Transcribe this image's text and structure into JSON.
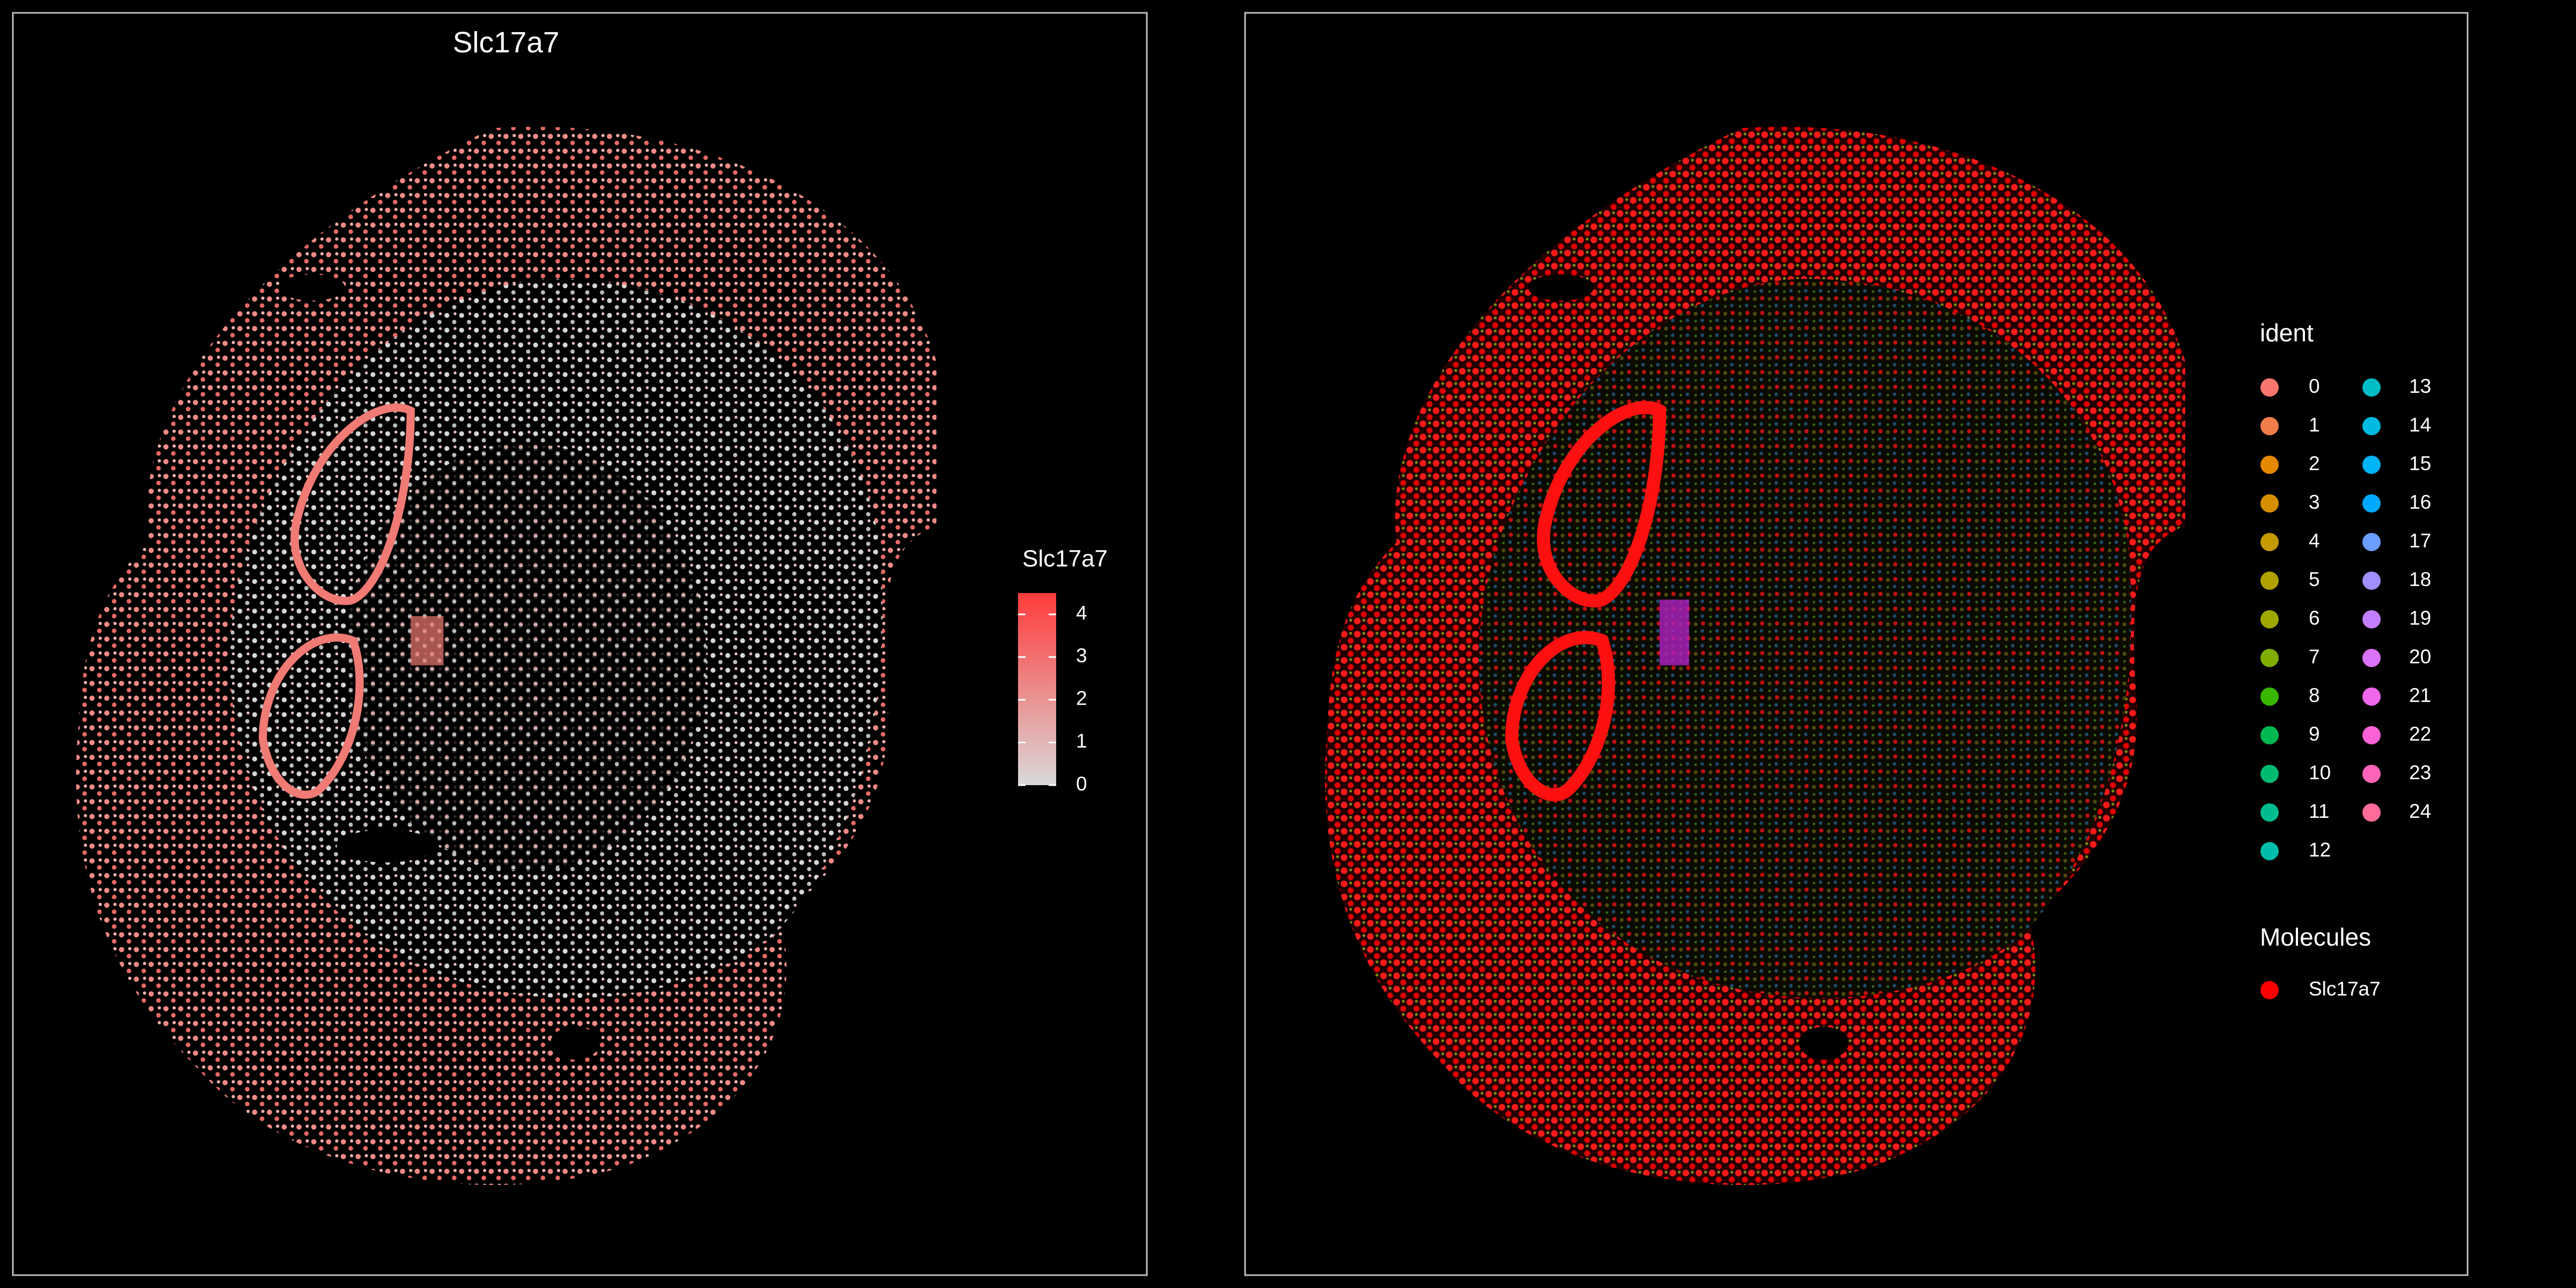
{
  "chart_data": [
    {
      "type": "spatial-feature",
      "title": "Slc17a7",
      "legend": {
        "title": "Slc17a7",
        "colors": [
          "#d9d9d9",
          "#ff3b3b"
        ],
        "lim": [
          0,
          4.5
        ],
        "ticks": [
          0,
          1,
          2,
          3,
          4
        ]
      }
    },
    {
      "type": "spatial-dim",
      "legend": {
        "title": "ident",
        "items": [
          {
            "label": "0",
            "color": "#F8766D"
          },
          {
            "label": "1",
            "color": "#F07E4C"
          },
          {
            "label": "2",
            "color": "#E58700"
          },
          {
            "label": "3",
            "color": "#D68F00"
          },
          {
            "label": "4",
            "color": "#C59900"
          },
          {
            "label": "5",
            "color": "#B2A000"
          },
          {
            "label": "6",
            "color": "#9CA700"
          },
          {
            "label": "7",
            "color": "#7FAD00"
          },
          {
            "label": "8",
            "color": "#39B600"
          },
          {
            "label": "9",
            "color": "#00B84D"
          },
          {
            "label": "10",
            "color": "#00BA70"
          },
          {
            "label": "11",
            "color": "#00BC8F"
          },
          {
            "label": "12",
            "color": "#00BDAB"
          },
          {
            "label": "13",
            "color": "#00BCC7"
          },
          {
            "label": "14",
            "color": "#00B9E0"
          },
          {
            "label": "15",
            "color": "#00B3F4"
          },
          {
            "label": "16",
            "color": "#00A9FF"
          },
          {
            "label": "17",
            "color": "#6B9DFF"
          },
          {
            "label": "18",
            "color": "#9F8FFF"
          },
          {
            "label": "19",
            "color": "#C17FFF"
          },
          {
            "label": "20",
            "color": "#DB72FB"
          },
          {
            "label": "21",
            "color": "#EF67EB"
          },
          {
            "label": "22",
            "color": "#FA62D5"
          },
          {
            "label": "23",
            "color": "#FF64B9"
          },
          {
            "label": "24",
            "color": "#FF6C9A"
          }
        ]
      },
      "molecules": {
        "title": "Molecules",
        "items": [
          {
            "label": "Slc17a7",
            "color": "#ff0000"
          }
        ]
      }
    }
  ]
}
